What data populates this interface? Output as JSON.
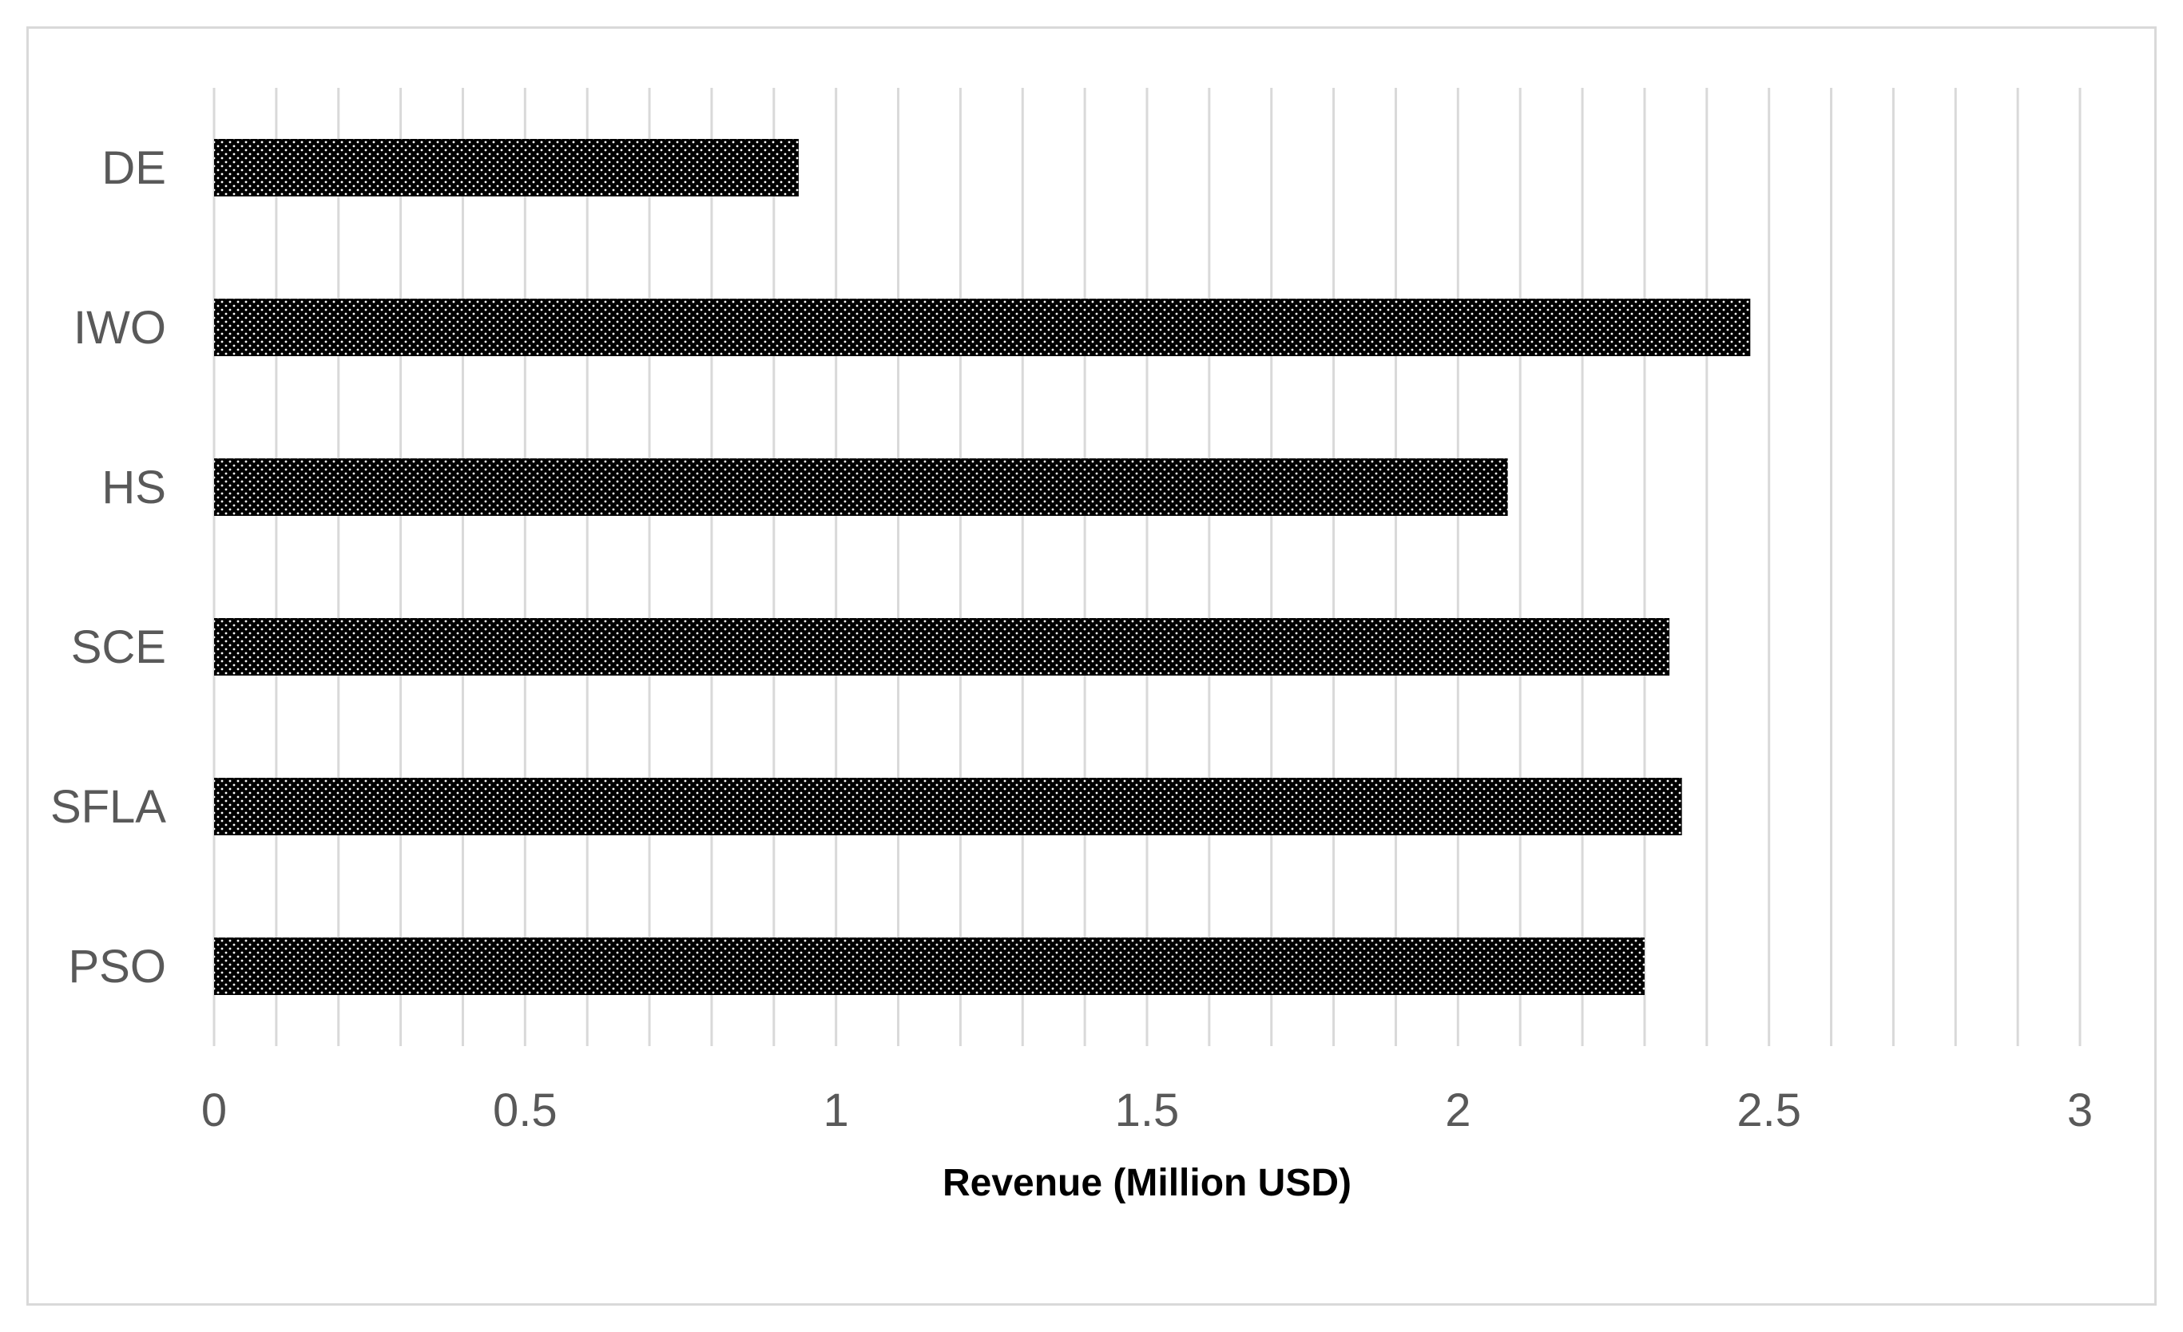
{
  "chart_data": {
    "type": "bar",
    "orientation": "horizontal",
    "categories": [
      "DE",
      "IWO",
      "HS",
      "SCE",
      "SFLA",
      "PSO"
    ],
    "values": [
      0.94,
      2.47,
      2.08,
      2.34,
      2.36,
      2.3
    ],
    "title": "",
    "xlabel": "Revenue (Million USD)",
    "ylabel": "",
    "xlim": [
      0,
      3
    ],
    "x_ticks": [
      "0",
      "0.5",
      "1",
      "1.5",
      "2",
      "2.5",
      "3"
    ],
    "x_tick_values": [
      0,
      0.5,
      1,
      1.5,
      2,
      2.5,
      3
    ],
    "minor_gridline_step": 0.1,
    "grid": true,
    "legend": "none",
    "bar_fill": "dotted-black",
    "colors": {
      "bar": "#000000",
      "dots": "#ffffff",
      "grid": "#d9d9d9",
      "labels": "#595959"
    }
  }
}
